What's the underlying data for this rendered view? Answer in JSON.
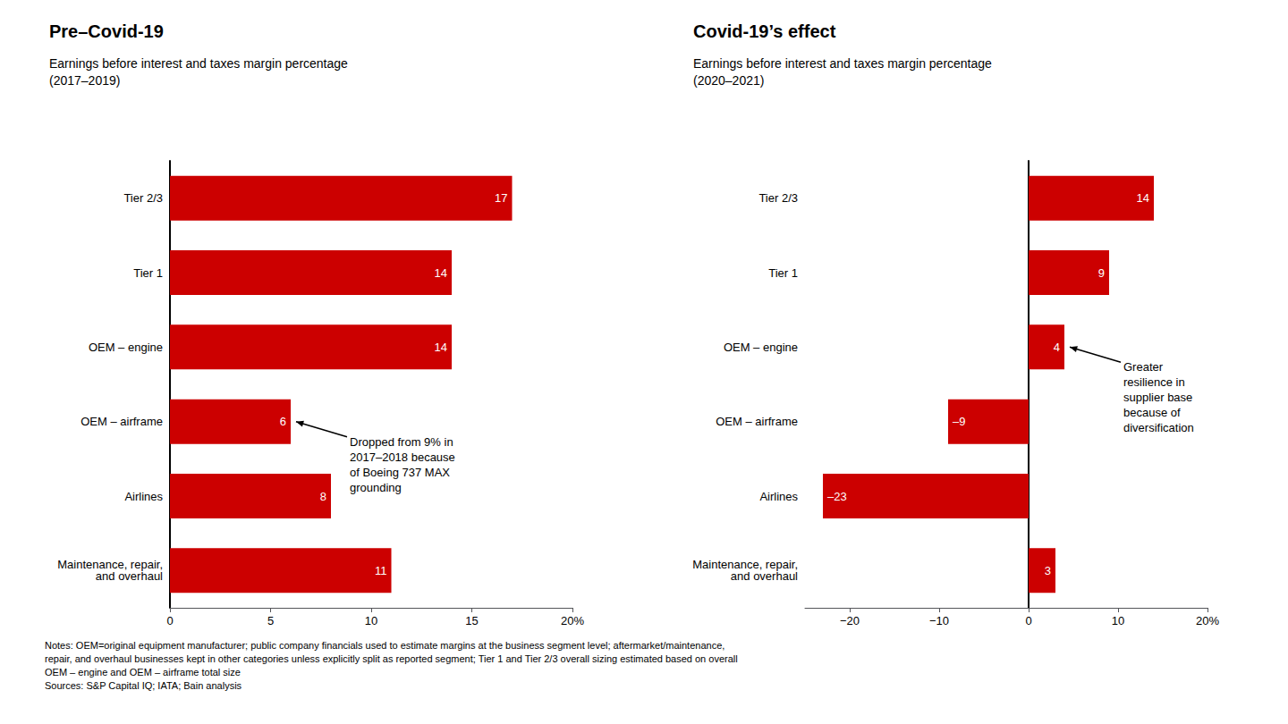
{
  "chart_data": [
    {
      "type": "bar",
      "orientation": "horizontal",
      "title": "Pre–Covid-19",
      "subtitle": "Earnings before interest and taxes margin percentage\n(2017–2019)",
      "categories": [
        "Tier 2/3",
        "Tier 1",
        "OEM – engine",
        "OEM – airframe",
        "Airlines",
        "Maintenance, repair,\nand overhaul"
      ],
      "values": [
        17,
        14,
        14,
        6,
        8,
        11
      ],
      "color": "#cc0000",
      "xlim": [
        0,
        20
      ],
      "xticks": [
        0,
        5,
        10,
        15,
        {
          "value": 20,
          "label": "20%"
        }
      ],
      "grid": false,
      "data_labels": true,
      "annotations": [
        {
          "text": "Dropped from 9% in\n2017–2018 because\nof Boeing 737 MAX\ngrounding",
          "category": "OEM – airframe"
        }
      ]
    },
    {
      "type": "bar",
      "orientation": "horizontal",
      "title": "Covid-19’s effect",
      "subtitle": "Earnings before interest and taxes margin percentage\n(2020–2021)",
      "categories": [
        "Tier 2/3",
        "Tier 1",
        "OEM – engine",
        "OEM – airframe",
        "Airlines",
        "Maintenance, repair,\nand overhaul"
      ],
      "values": [
        14,
        9,
        4,
        -9,
        -23,
        3
      ],
      "value_labels": [
        "14",
        "9",
        "4",
        "–9",
        "–23",
        "3"
      ],
      "color": "#cc0000",
      "xlim": [
        -25,
        20
      ],
      "xticks": [
        {
          "value": -20,
          "label": "−20"
        },
        {
          "value": -10,
          "label": "−10"
        },
        0,
        10,
        {
          "value": 20,
          "label": "20%"
        }
      ],
      "grid": false,
      "data_labels": true,
      "annotations": [
        {
          "text": "Greater\nresilience in\nsupplier base\nbecause of\ndiversification",
          "category": "OEM – engine"
        }
      ]
    }
  ],
  "notes": "Notes: OEM=original equipment manufacturer; public company financials used to estimate margins at the business segment level; aftermarket/maintenance,\nrepair, and overhaul businesses kept in other categories unless explicitly split as reported segment; Tier 1 and Tier 2/3 overall sizing estimated based on overall\nOEM – engine and OEM – airframe total size\nSources: S&P Capital IQ; IATA; Bain analysis"
}
